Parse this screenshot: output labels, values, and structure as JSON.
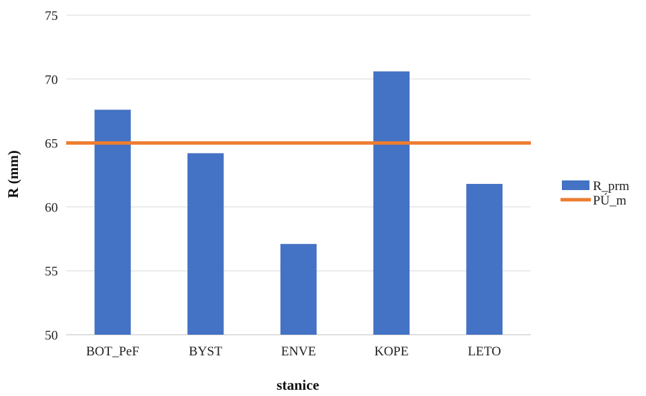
{
  "chart_data": {
    "type": "bar",
    "title": "",
    "xlabel": "stanice",
    "ylabel": "R (mm)",
    "categories": [
      "BOT_PeF",
      "BYST",
      "ENVE",
      "KOPE",
      "LETO"
    ],
    "series": [
      {
        "name": "R_prm",
        "type": "bar",
        "values": [
          67.6,
          64.2,
          57.1,
          70.6,
          61.8
        ]
      },
      {
        "name": "PÚ_m",
        "type": "line",
        "values": [
          65.0,
          65.0,
          65.0,
          65.0,
          65.0
        ]
      }
    ],
    "ylim": [
      50,
      75
    ],
    "yticks": [
      50,
      55,
      60,
      65,
      70,
      75
    ],
    "grid": true,
    "legend": "right",
    "colors": {
      "bar": "#4472C4",
      "line": "#ED7D31",
      "grid": "#d9d9d9",
      "axis": "#bfbfbf"
    }
  }
}
